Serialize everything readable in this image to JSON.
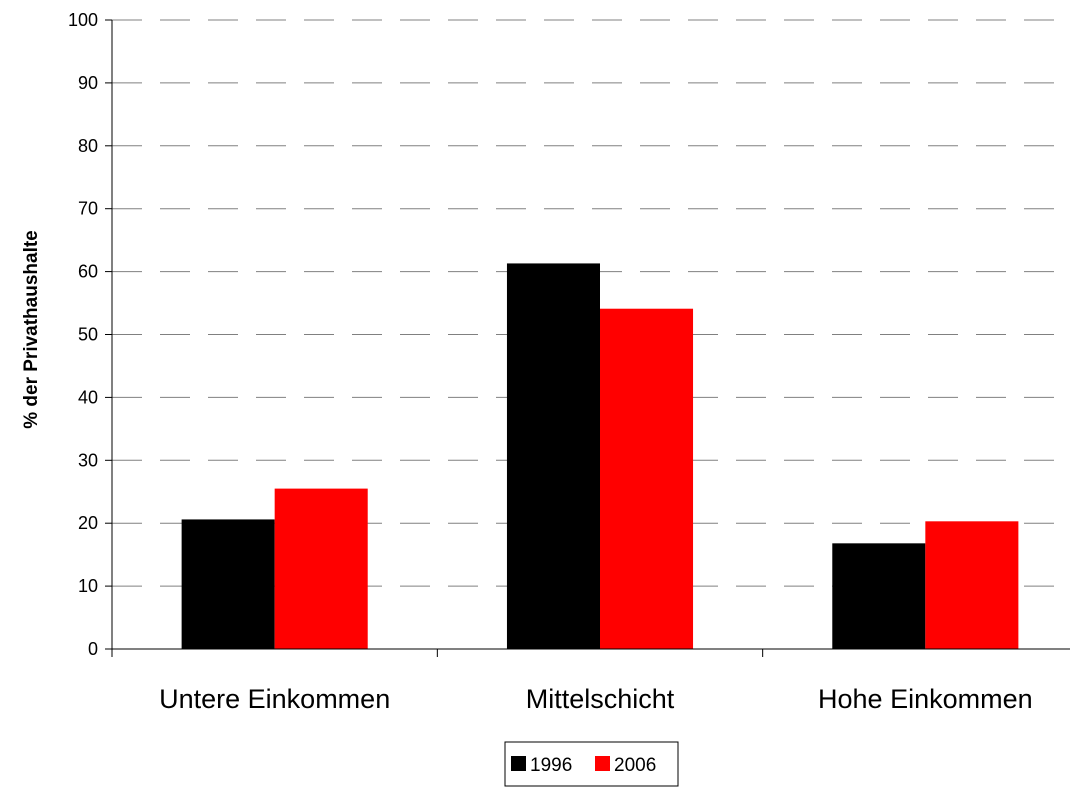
{
  "chart_data": {
    "type": "bar",
    "title": "",
    "xlabel": "",
    "ylabel": "% der Privathaushalte",
    "categories": [
      "Untere Einkommen",
      "Mittelschicht",
      "Hohe Einkommen"
    ],
    "series": [
      {
        "name": "1996",
        "color": "#000000",
        "values": [
          20.6,
          61.3,
          16.8
        ]
      },
      {
        "name": "2006",
        "color": "#ff0000",
        "values": [
          25.5,
          54.1,
          20.3
        ]
      }
    ],
    "ylim": [
      0,
      100
    ],
    "yticks": [
      0,
      10,
      20,
      30,
      40,
      50,
      60,
      70,
      80,
      90,
      100
    ],
    "grid": true,
    "legend_position": "bottom"
  }
}
